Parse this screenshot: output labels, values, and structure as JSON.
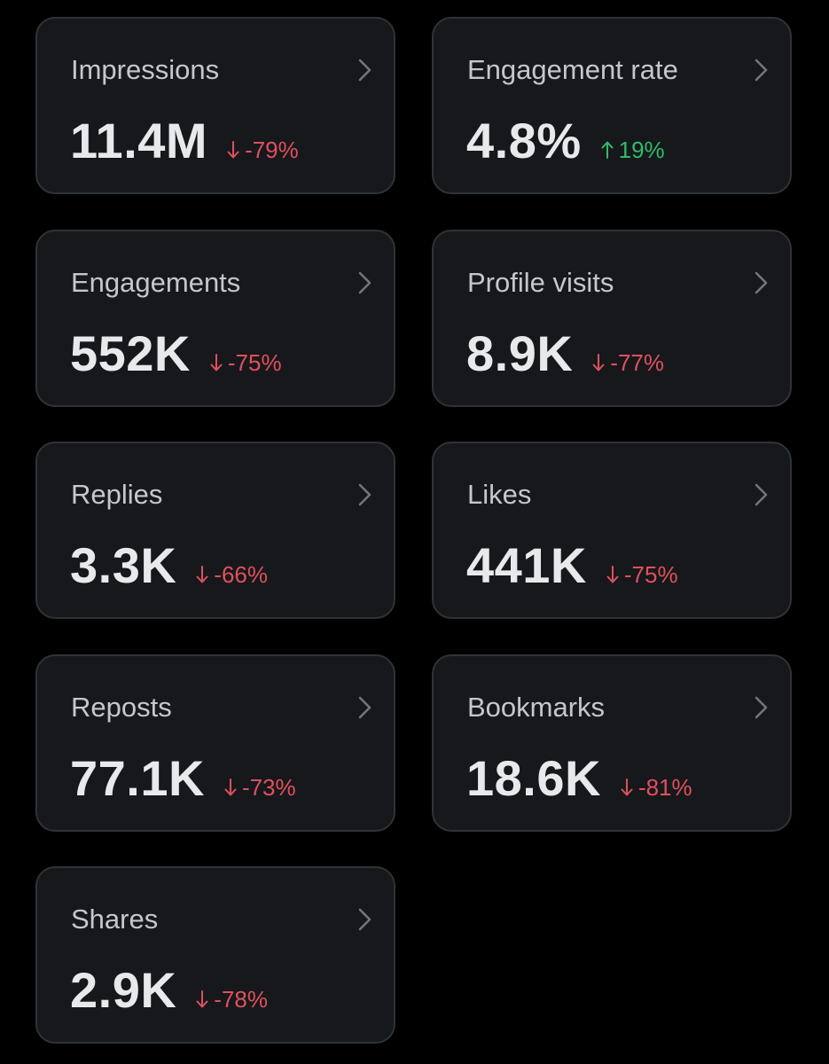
{
  "colors": {
    "background": "#000000",
    "card_background": "#16181c",
    "card_border": "#2f3336",
    "label": "#c4c7cb",
    "value": "#e7e9ea",
    "negative": "#e0505c",
    "positive": "#2ebc6a"
  },
  "metrics": [
    {
      "label": "Impressions",
      "value": "11.4M",
      "change": "-79%",
      "direction": "down",
      "icon": "chevron-right-icon"
    },
    {
      "label": "Engagement rate",
      "value": "4.8%",
      "change": "19%",
      "direction": "up",
      "icon": "chevron-right-icon"
    },
    {
      "label": "Engagements",
      "value": "552K",
      "change": "-75%",
      "direction": "down",
      "icon": "chevron-right-icon"
    },
    {
      "label": "Profile visits",
      "value": "8.9K",
      "change": "-77%",
      "direction": "down",
      "icon": "chevron-right-icon"
    },
    {
      "label": "Replies",
      "value": "3.3K",
      "change": "-66%",
      "direction": "down",
      "icon": "chevron-right-icon"
    },
    {
      "label": "Likes",
      "value": "441K",
      "change": "-75%",
      "direction": "down",
      "icon": "chevron-right-icon"
    },
    {
      "label": "Reposts",
      "value": "77.1K",
      "change": "-73%",
      "direction": "down",
      "icon": "chevron-right-icon"
    },
    {
      "label": "Bookmarks",
      "value": "18.6K",
      "change": "-81%",
      "direction": "down",
      "icon": "chevron-right-icon"
    },
    {
      "label": "Shares",
      "value": "2.9K",
      "change": "-78%",
      "direction": "down",
      "icon": "chevron-right-icon"
    }
  ]
}
